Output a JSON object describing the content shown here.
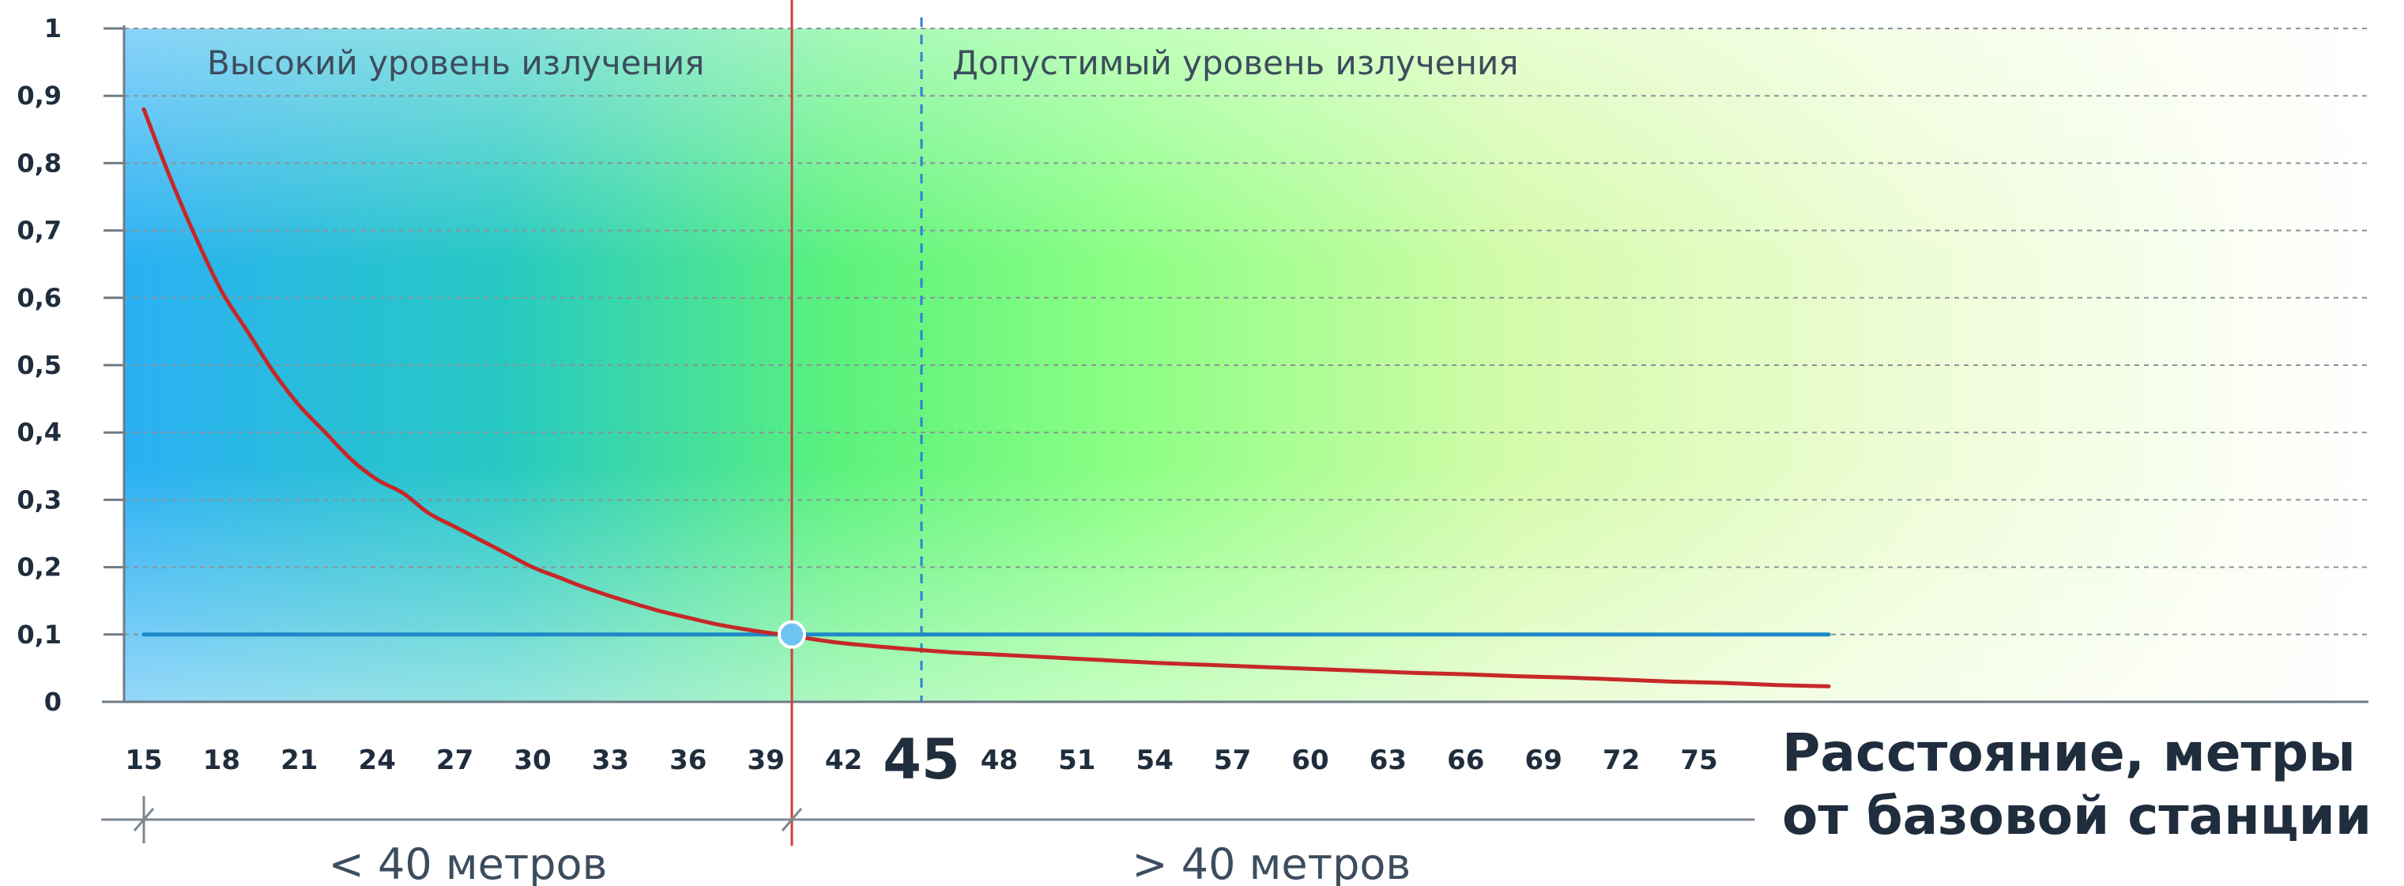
{
  "chart_data": {
    "type": "line",
    "xlabel": [
      "Расстояние, метры",
      "от базовой станции"
    ],
    "ylim": [
      0,
      1
    ],
    "xlim": [
      15,
      80
    ],
    "y_ticks": [
      "0",
      "0,1",
      "0,2",
      "0,3",
      "0,4",
      "0,5",
      "0,6",
      "0,7",
      "0,8",
      "0,9",
      "1"
    ],
    "x_ticks": [
      {
        "value": 15,
        "label": "15"
      },
      {
        "value": 18,
        "label": "18"
      },
      {
        "value": 21,
        "label": "21"
      },
      {
        "value": 24,
        "label": "24"
      },
      {
        "value": 27,
        "label": "27"
      },
      {
        "value": 30,
        "label": "30"
      },
      {
        "value": 33,
        "label": "33"
      },
      {
        "value": 36,
        "label": "36"
      },
      {
        "value": 39,
        "label": "39"
      },
      {
        "value": 42,
        "label": "42"
      },
      {
        "value": 45,
        "label": "45",
        "emphasis": true
      },
      {
        "value": 48,
        "label": "48"
      },
      {
        "value": 51,
        "label": "51"
      },
      {
        "value": 54,
        "label": "54"
      },
      {
        "value": 57,
        "label": "57"
      },
      {
        "value": 60,
        "label": "60"
      },
      {
        "value": 63,
        "label": "63"
      },
      {
        "value": 66,
        "label": "66"
      },
      {
        "value": 69,
        "label": "69"
      },
      {
        "value": 72,
        "label": "72"
      },
      {
        "value": 75,
        "label": "75"
      }
    ],
    "grid": true,
    "zones": [
      {
        "label": "Высокий уровень излучения"
      },
      {
        "label": "Допустимый уровень излучения"
      }
    ],
    "ranges": [
      {
        "label": "< 40 метров",
        "from": 15,
        "to": 40
      },
      {
        "label": "> 40 метров",
        "from": 40,
        "to": 77
      }
    ],
    "series": [
      {
        "color": "#c62828",
        "x": [
          15,
          16,
          17,
          18,
          19,
          20,
          21,
          22,
          23,
          24,
          25,
          26,
          27,
          28,
          29,
          30,
          31,
          32,
          33,
          34,
          35,
          36,
          37,
          38,
          39,
          40,
          41,
          42,
          44,
          46,
          48,
          50,
          52,
          54,
          56,
          58,
          60,
          62,
          64,
          66,
          68,
          70,
          72,
          74,
          76,
          78,
          80
        ],
        "y": [
          0.88,
          0.78,
          0.69,
          0.61,
          0.55,
          0.49,
          0.44,
          0.4,
          0.36,
          0.33,
          0.31,
          0.28,
          0.26,
          0.24,
          0.22,
          0.2,
          0.185,
          0.17,
          0.157,
          0.145,
          0.134,
          0.125,
          0.116,
          0.109,
          0.103,
          0.098,
          0.092,
          0.087,
          0.08,
          0.074,
          0.07,
          0.066,
          0.062,
          0.058,
          0.055,
          0.052,
          0.049,
          0.046,
          0.043,
          0.041,
          0.038,
          0.036,
          0.033,
          0.03,
          0.028,
          0.025,
          0.023
        ]
      },
      {
        "color": "#1e88c8",
        "x": [
          15,
          80
        ],
        "y": [
          0.1,
          0.1
        ]
      }
    ],
    "marker": {
      "x": 40,
      "y": 0.1,
      "color": "#6ec3f0"
    },
    "threshold_line": {
      "x": 40,
      "color": "#d63a3a"
    },
    "dashed_line": {
      "x": 45,
      "color": "#2f7fd6"
    }
  }
}
